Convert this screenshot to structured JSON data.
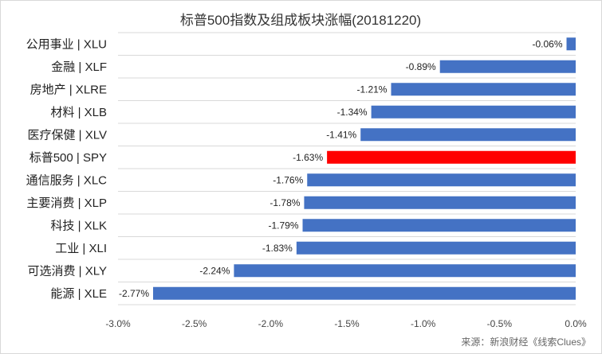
{
  "chart_data": {
    "type": "bar",
    "orientation": "horizontal",
    "title": "标普500指数及组成板块涨幅(20181220)",
    "categories": [
      "公用事业 | XLU",
      "金融 | XLF",
      "房地产 | XLRE",
      "材料 | XLB",
      "医疗保健 | XLV",
      "标普500 | SPY",
      "通信服务 | XLC",
      "主要消费 | XLP",
      "科技 | XLK",
      "工业 | XLI",
      "可选消费 | XLY",
      "能源 | XLE"
    ],
    "values": [
      -0.06,
      -0.89,
      -1.21,
      -1.34,
      -1.41,
      -1.63,
      -1.76,
      -1.78,
      -1.79,
      -1.83,
      -2.24,
      -2.77
    ],
    "data_labels": [
      "-0.06%",
      "-0.89%",
      "-1.21%",
      "-1.34%",
      "-1.41%",
      "-1.63%",
      "-1.76%",
      "-1.78%",
      "-1.79%",
      "-1.83%",
      "-2.24%",
      "-2.77%"
    ],
    "highlight_index": 5,
    "bar_color": "#4472c4",
    "highlight_color": "#ff0000",
    "xlim": [
      -3.0,
      0.0
    ],
    "x_ticks": [
      -3.0,
      -2.5,
      -2.0,
      -1.5,
      -1.0,
      -0.5,
      0.0
    ],
    "x_tick_labels": [
      "-3.0%",
      "-2.5%",
      "-2.0%",
      "-1.5%",
      "-1.0%",
      "-0.5%",
      "0.0%"
    ],
    "grid": "horizontal-category-lines",
    "xlabel": "",
    "ylabel": ""
  },
  "source": "来源：新浪财经《线索Clues》"
}
